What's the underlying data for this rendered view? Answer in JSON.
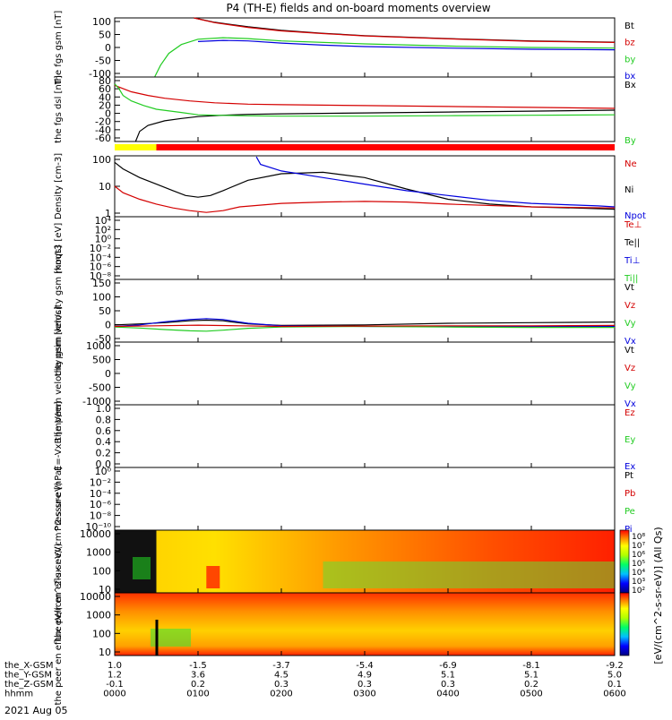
{
  "title": "P4 (TH-E) fields and on-board moments overview",
  "date_label": "2021 Aug 05",
  "colors": {
    "black": "#000000",
    "red": "#d40000",
    "green": "#22cc22",
    "blue": "#0000dd",
    "yellow": "#ffff00",
    "bar_red": "#ff0000"
  },
  "x_axis": {
    "rows": [
      {
        "label": "the_X-GSM",
        "values": [
          "1.0",
          "-1.5",
          "-3.7",
          "-5.4",
          "-6.9",
          "-8.1",
          "-9.2"
        ]
      },
      {
        "label": "the_Y-GSM",
        "values": [
          "1.2",
          "3.6",
          "4.5",
          "4.9",
          "5.1",
          "5.1",
          "5.0"
        ]
      },
      {
        "label": "the_Z-GSM",
        "values": [
          "-0.1",
          "0.2",
          "0.3",
          "0.3",
          "0.3",
          "0.2",
          "0.1"
        ]
      },
      {
        "label": "hhmm",
        "values": [
          "0000",
          "0100",
          "0200",
          "0300",
          "0400",
          "0500",
          "0600"
        ]
      }
    ],
    "time_hours": [
      0,
      1,
      2,
      3,
      4,
      5,
      6
    ]
  },
  "chart_data": [
    {
      "type": "line",
      "ylabel": "the fgs gsm [nT]",
      "yticks": [
        "100",
        "50",
        "0",
        "-50",
        "-100"
      ],
      "ylim": [
        -100,
        100
      ],
      "legend": [
        {
          "name": "Bt",
          "color": "#000000"
        },
        {
          "name": "bz",
          "color": "#d40000"
        },
        {
          "name": "by",
          "color": "#22cc22"
        },
        {
          "name": "bx",
          "color": "#0000dd"
        }
      ],
      "series": [
        {
          "name": "Bt",
          "color": "#000000",
          "x": [
            0.95,
            1.2,
            1.6,
            2.0,
            2.5,
            3.0,
            4.0,
            5.0,
            6.0
          ],
          "y": [
            100,
            85,
            70,
            58,
            48,
            40,
            30,
            22,
            18
          ]
        },
        {
          "name": "bz",
          "color": "#d40000",
          "x": [
            0.95,
            1.2,
            1.6,
            2.0,
            2.5,
            3.0,
            4.0,
            5.0,
            6.0
          ],
          "y": [
            100,
            84,
            68,
            56,
            47,
            39,
            29,
            21,
            17
          ]
        },
        {
          "name": "by",
          "color": "#22cc22",
          "x": [
            0.48,
            0.55,
            0.65,
            0.8,
            1.0,
            1.3,
            1.6,
            2.0,
            3.0,
            4.0,
            5.0,
            6.0
          ],
          "y": [
            -100,
            -60,
            -20,
            10,
            28,
            33,
            30,
            22,
            12,
            5,
            0,
            -2
          ]
        },
        {
          "name": "bx",
          "color": "#0000dd",
          "x": [
            1.0,
            1.3,
            1.6,
            2.0,
            2.5,
            3.0,
            4.0,
            5.0,
            6.0
          ],
          "y": [
            20,
            24,
            22,
            15,
            8,
            3,
            -2,
            -6,
            -8
          ]
        }
      ]
    },
    {
      "type": "line",
      "ylabel": "the fgs dsl [nT]",
      "yticks": [
        "80",
        "60",
        "40",
        "20",
        "0",
        "-20",
        "-40",
        "-60"
      ],
      "ylim": [
        -60,
        80
      ],
      "legend": [
        {
          "name": "Bx",
          "color": "#000000"
        },
        {
          "name": "By",
          "color": "#22cc22"
        }
      ],
      "series": [
        {
          "name": "red",
          "color": "#d40000",
          "x": [
            0,
            0.1,
            0.2,
            0.4,
            0.6,
            0.9,
            1.2,
            1.6,
            2.0,
            3.0,
            4.0,
            5.0,
            6.0
          ],
          "y": [
            62,
            55,
            48,
            40,
            34,
            28,
            24,
            21,
            20,
            18,
            16,
            14,
            12
          ]
        },
        {
          "name": "Bx",
          "color": "#000000",
          "x": [
            0.25,
            0.3,
            0.4,
            0.6,
            0.8,
            1.0,
            1.3,
            1.6,
            2.0,
            3.0,
            4.0,
            5.0,
            6.0
          ],
          "y": [
            -60,
            -38,
            -25,
            -15,
            -10,
            -6,
            -3,
            -1,
            0,
            2,
            4,
            6,
            8
          ]
        },
        {
          "name": "By",
          "color": "#22cc22",
          "x": [
            0,
            0.05,
            0.1,
            0.2,
            0.35,
            0.5,
            0.8,
            1.0,
            1.5,
            2.0,
            3.0,
            4.0,
            5.0,
            6.0
          ],
          "y": [
            65,
            55,
            40,
            28,
            18,
            10,
            3,
            -2,
            -4,
            -5,
            -5,
            -4,
            -3,
            -2
          ]
        }
      ]
    },
    {
      "type": "log-line",
      "ylabel": "Density [cm-3]",
      "yticks": [
        "100",
        "10",
        "1"
      ],
      "ylog": [
        -0.5,
        2.3
      ],
      "legend": [
        {
          "name": "Ne",
          "color": "#d40000"
        },
        {
          "name": "Ni",
          "color": "#000000"
        },
        {
          "name": "Npot",
          "color": "#0000dd"
        }
      ],
      "series": [
        {
          "name": "Ni",
          "color": "#000000",
          "x": [
            0,
            0.1,
            0.3,
            0.5,
            0.7,
            0.85,
            1.0,
            1.15,
            1.3,
            1.6,
            2.0,
            2.5,
            3.0,
            3.5,
            4.0,
            4.5,
            5.0,
            5.5,
            6.0
          ],
          "y": [
            100,
            50,
            20,
            10,
            5,
            3,
            2.5,
            3,
            5,
            15,
            30,
            35,
            20,
            6,
            2,
            1.2,
            0.9,
            0.8,
            0.7
          ]
        },
        {
          "name": "Ne",
          "color": "#d40000",
          "x": [
            0,
            0.1,
            0.3,
            0.5,
            0.7,
            0.9,
            1.1,
            1.3,
            1.5,
            2.0,
            2.5,
            3.0,
            3.5,
            4.0,
            5.0,
            6.0
          ],
          "y": [
            8,
            4,
            2,
            1.2,
            0.8,
            0.6,
            0.5,
            0.6,
            0.9,
            1.3,
            1.5,
            1.6,
            1.5,
            1.2,
            0.9,
            0.8
          ]
        },
        {
          "name": "Npot",
          "color": "#0000dd",
          "x": [
            1.7,
            1.75,
            2.0,
            2.5,
            3.0,
            3.5,
            4.0,
            4.5,
            5.0,
            5.5,
            5.8,
            6.0
          ],
          "y": [
            180,
            80,
            40,
            20,
            10,
            5,
            3,
            1.8,
            1.3,
            1.1,
            1.0,
            0.9
          ]
        }
      ]
    },
    {
      "type": "log-line",
      "ylabel": "moqt3 [eV]",
      "yticks": [
        "10⁴",
        "10²",
        "10⁰",
        "10⁻²",
        "10⁻⁴",
        "10⁻⁶",
        "10⁻⁸"
      ],
      "legend": [
        {
          "name": "Te⊥",
          "color": "#d40000"
        },
        {
          "name": "Te||",
          "color": "#000000"
        },
        {
          "name": "Ti⊥",
          "color": "#0000dd"
        },
        {
          "name": "Ti||",
          "color": "#22cc22"
        }
      ],
      "series": []
    },
    {
      "type": "line",
      "ylabel": "the peim velocity gsm [km/s]",
      "yticks": [
        "150",
        "100",
        "50",
        "0",
        "-50"
      ],
      "ylim": [
        -50,
        150
      ],
      "legend": [
        {
          "name": "Vt",
          "color": "#000000"
        },
        {
          "name": "Vz",
          "color": "#d40000"
        },
        {
          "name": "Vy",
          "color": "#22cc22"
        },
        {
          "name": "Vx",
          "color": "#0000dd"
        }
      ],
      "series": [
        {
          "name": "Vt",
          "color": "#000000",
          "x": [
            0,
            0.3,
            0.6,
            0.9,
            1.1,
            1.3,
            1.6,
            2.0,
            3.0,
            4.0,
            5.0,
            6.0
          ],
          "y": [
            5,
            8,
            12,
            18,
            20,
            18,
            8,
            3,
            5,
            10,
            12,
            14
          ]
        },
        {
          "name": "Vx",
          "color": "#0000dd",
          "x": [
            0,
            0.3,
            0.6,
            0.9,
            1.1,
            1.3,
            1.6,
            2.0,
            3.0,
            4.0,
            5.0,
            6.0
          ],
          "y": [
            0,
            5,
            15,
            22,
            25,
            22,
            10,
            2,
            0,
            0,
            0,
            0
          ]
        },
        {
          "name": "Vy",
          "color": "#22cc22",
          "x": [
            0,
            0.3,
            0.6,
            0.9,
            1.1,
            1.3,
            1.6,
            2.0,
            3.0,
            4.0,
            5.0,
            6.0
          ],
          "y": [
            -2,
            -5,
            -10,
            -14,
            -15,
            -12,
            -6,
            -2,
            0,
            -2,
            -3,
            -3
          ]
        },
        {
          "name": "Vz",
          "color": "#d40000",
          "x": [
            0,
            0.5,
            1.0,
            1.5,
            2.0,
            3.0,
            4.0,
            5.0,
            6.0
          ],
          "y": [
            0,
            2,
            4,
            2,
            0,
            1,
            2,
            2,
            3
          ]
        }
      ]
    },
    {
      "type": "line",
      "ylabel": "the peem velocity gsm [km/s]",
      "yticks": [
        "1000",
        "500",
        "0",
        "-500",
        "-1000"
      ],
      "ylim": [
        -1000,
        1000
      ],
      "legend": [
        {
          "name": "Vt",
          "color": "#000000"
        },
        {
          "name": "Vz",
          "color": "#d40000"
        },
        {
          "name": "Vy",
          "color": "#22cc22"
        },
        {
          "name": "Vx",
          "color": "#0000dd"
        }
      ],
      "series": []
    },
    {
      "type": "line",
      "ylabel": "E=-VxB [mV/m]",
      "yticks": [
        "1.0",
        "0.8",
        "0.6",
        "0.4",
        "0.2",
        "0.0"
      ],
      "ylim": [
        0,
        1
      ],
      "legend": [
        {
          "name": "Ez",
          "color": "#d40000"
        },
        {
          "name": "Ey",
          "color": "#22cc22"
        },
        {
          "name": "Ex",
          "color": "#0000dd"
        }
      ],
      "series": []
    },
    {
      "type": "log-line",
      "ylabel": "Pressure [nPa]",
      "yticks": [
        "10⁰",
        "10⁻²",
        "10⁻⁴",
        "10⁻⁶",
        "10⁻⁸",
        "10⁻¹⁰"
      ],
      "legend": [
        {
          "name": "Pt",
          "color": "#000000"
        },
        {
          "name": "Pb",
          "color": "#d40000"
        },
        {
          "name": "Pe",
          "color": "#22cc22"
        },
        {
          "name": "Pi",
          "color": "#0000dd"
        }
      ],
      "series": []
    },
    {
      "type": "heatmap",
      "ylabel": "the peir en eflux eV/(cm^2-s-sr-eV)",
      "yticks": [
        "10000",
        "1000",
        "100",
        "10"
      ]
    },
    {
      "type": "heatmap",
      "ylabel": "the peer en eflux eV/(cm^2-s-sr-eV)",
      "yticks": [
        "10000",
        "1000",
        "100",
        "10"
      ]
    }
  ],
  "colorbar": {
    "label": "[eV/(cm^2-s-sr-eV)] (All Qs)",
    "ticks": [
      "10⁸",
      "10⁷",
      "10⁶",
      "10⁵",
      "10⁴",
      "10³",
      "10²"
    ]
  }
}
